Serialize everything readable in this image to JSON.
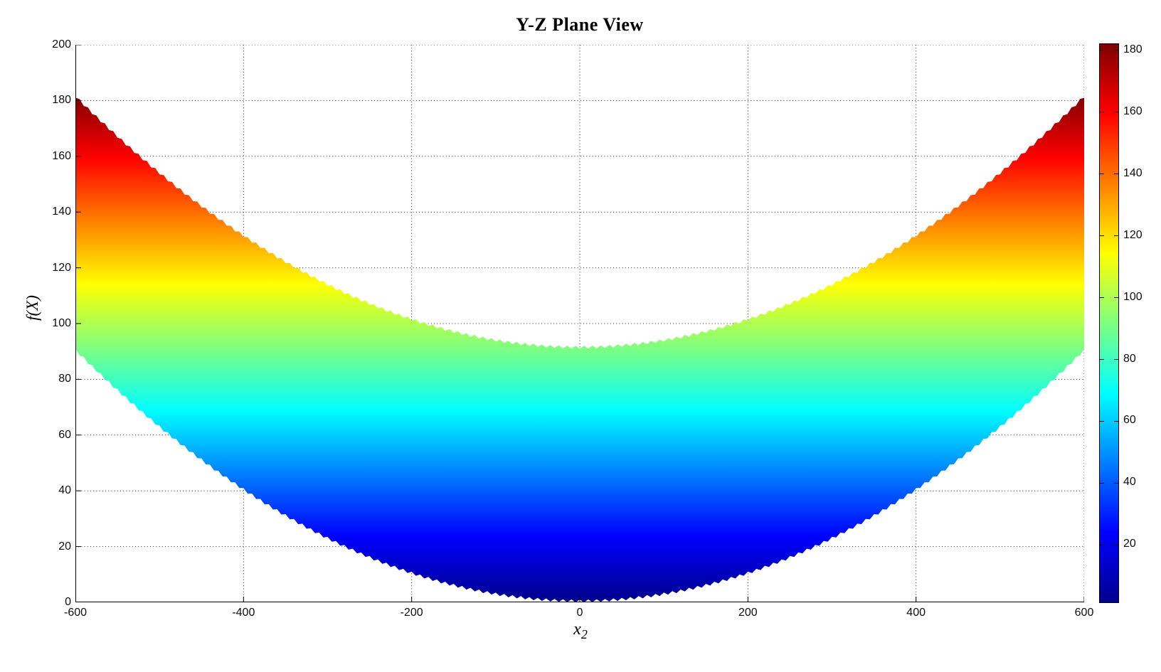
{
  "chart_data": {
    "type": "area",
    "title": "Y-Z Plane View",
    "xlabel_base": "x",
    "xlabel_sub": "2",
    "ylabel": "f(X)",
    "xlim": [
      -600,
      600
    ],
    "ylim": [
      0,
      200
    ],
    "xticks": [
      -600,
      -400,
      -200,
      0,
      200,
      400,
      600
    ],
    "yticks": [
      0,
      20,
      40,
      60,
      80,
      100,
      120,
      140,
      160,
      180,
      200
    ],
    "grid": true,
    "legend": null,
    "band": {
      "description": "Y-Z plane projection of surface f(X)=(x1^2+x2^2)/4000: filled parabolic band between bottom f=1+x2^2/4000 and top f=91+x2^2/4000, colored by f with jet colormap; edges are jagged (mesh triangles)",
      "coeff": 0.00025,
      "bottom_offset": 1,
      "top_offset": 91,
      "x": [
        -600,
        -500,
        -400,
        -300,
        -200,
        -100,
        0,
        100,
        200,
        300,
        400,
        500,
        600
      ],
      "bottom": [
        91,
        63.5,
        41,
        23.5,
        11,
        3.5,
        1,
        3.5,
        11,
        23.5,
        41,
        63.5,
        91
      ],
      "top": [
        181,
        153.5,
        131,
        113.5,
        101,
        93.5,
        91,
        93.5,
        101,
        113.5,
        131,
        153.5,
        181
      ]
    },
    "colormap": {
      "name": "jet",
      "cmin": 1,
      "cmax": 182,
      "stops": [
        [
          0.0,
          "#00008F"
        ],
        [
          0.125,
          "#0000FF"
        ],
        [
          0.375,
          "#00FFFF"
        ],
        [
          0.625,
          "#FFFF00"
        ],
        [
          0.875,
          "#FF0000"
        ],
        [
          1.0,
          "#800000"
        ]
      ]
    },
    "colorbar_ticks": [
      20,
      40,
      60,
      80,
      100,
      120,
      140,
      160,
      180
    ],
    "axis_color": "#000000",
    "grid_color": "#222222",
    "background": "#ffffff"
  }
}
